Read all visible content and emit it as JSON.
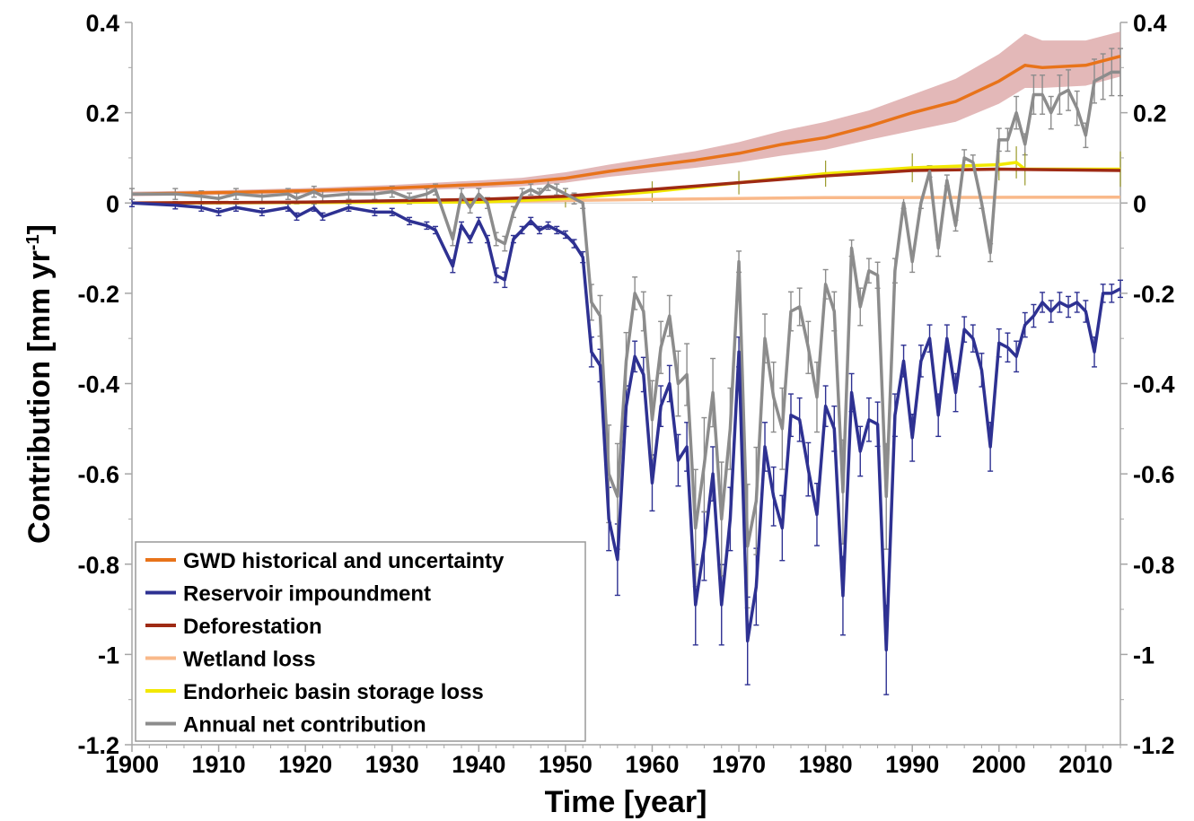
{
  "chart_data": {
    "type": "line",
    "xlabel": "Time [year]",
    "ylabel_main": "Contribution [mm yr",
    "ylabel_sup": "-1",
    "ylabel_end": "]",
    "xlim": [
      1900,
      2014
    ],
    "ylim": [
      -1.2,
      0.4
    ],
    "x_ticks": [
      1900,
      1910,
      1920,
      1930,
      1940,
      1950,
      1960,
      1970,
      1980,
      1990,
      2000,
      2010
    ],
    "y_ticks": [
      -1.2,
      -1,
      -0.8,
      -0.6,
      -0.4,
      -0.2,
      0,
      0.2,
      0.4
    ],
    "y_tick_labels": [
      "-1.2",
      "-1",
      "-0.8",
      "-0.6",
      "-0.4",
      "-0.2",
      "0",
      "0.2",
      "0.4"
    ],
    "right_axis": true,
    "legend_position": "bottom-left",
    "series": [
      {
        "name": "GWD historical and uncertainty",
        "color": "#e8731a",
        "band_color": "#d9a0a0",
        "x": [
          1900,
          1910,
          1920,
          1930,
          1940,
          1945,
          1950,
          1955,
          1960,
          1965,
          1970,
          1975,
          1980,
          1985,
          1990,
          1995,
          2000,
          2003,
          2005,
          2010,
          2014
        ],
        "values": [
          0.02,
          0.023,
          0.027,
          0.033,
          0.041,
          0.046,
          0.055,
          0.07,
          0.083,
          0.095,
          0.11,
          0.13,
          0.145,
          0.17,
          0.2,
          0.225,
          0.27,
          0.305,
          0.3,
          0.305,
          0.325
        ],
        "lower": [
          0.015,
          0.018,
          0.021,
          0.026,
          0.033,
          0.037,
          0.045,
          0.058,
          0.068,
          0.078,
          0.09,
          0.105,
          0.118,
          0.14,
          0.16,
          0.18,
          0.22,
          0.255,
          0.255,
          0.26,
          0.28
        ],
        "upper": [
          0.025,
          0.028,
          0.033,
          0.04,
          0.05,
          0.056,
          0.068,
          0.085,
          0.1,
          0.115,
          0.135,
          0.16,
          0.18,
          0.205,
          0.24,
          0.275,
          0.33,
          0.375,
          0.36,
          0.36,
          0.38
        ]
      },
      {
        "name": "Reservoir impoundment",
        "color": "#2e3192",
        "x": [
          1900,
          1905,
          1908,
          1910,
          1912,
          1915,
          1918,
          1919,
          1921,
          1922,
          1925,
          1928,
          1930,
          1932,
          1934,
          1935,
          1937,
          1938,
          1939,
          1940,
          1941,
          1942,
          1943,
          1944,
          1945,
          1946,
          1947,
          1948,
          1949,
          1950,
          1951,
          1952,
          1953,
          1954,
          1955,
          1956,
          1957,
          1958,
          1959,
          1960,
          1961,
          1962,
          1963,
          1964,
          1965,
          1966,
          1967,
          1968,
          1969,
          1970,
          1971,
          1972,
          1973,
          1974,
          1975,
          1976,
          1977,
          1978,
          1979,
          1980,
          1981,
          1982,
          1983,
          1984,
          1985,
          1986,
          1987,
          1988,
          1989,
          1990,
          1991,
          1992,
          1993,
          1994,
          1995,
          1996,
          1997,
          1998,
          1999,
          2000,
          2001,
          2002,
          2003,
          2004,
          2005,
          2006,
          2007,
          2008,
          2009,
          2010,
          2011,
          2012,
          2013,
          2014
        ],
        "values": [
          0,
          -0.005,
          -0.01,
          -0.02,
          -0.01,
          -0.02,
          -0.01,
          -0.03,
          -0.01,
          -0.03,
          -0.01,
          -0.02,
          -0.02,
          -0.04,
          -0.05,
          -0.06,
          -0.14,
          -0.05,
          -0.08,
          -0.04,
          -0.08,
          -0.16,
          -0.17,
          -0.08,
          -0.06,
          -0.04,
          -0.06,
          -0.05,
          -0.06,
          -0.07,
          -0.09,
          -0.12,
          -0.33,
          -0.36,
          -0.7,
          -0.79,
          -0.45,
          -0.34,
          -0.38,
          -0.62,
          -0.45,
          -0.4,
          -0.57,
          -0.54,
          -0.89,
          -0.76,
          -0.6,
          -0.89,
          -0.7,
          -0.33,
          -0.97,
          -0.85,
          -0.54,
          -0.65,
          -0.72,
          -0.47,
          -0.48,
          -0.59,
          -0.69,
          -0.45,
          -0.5,
          -0.87,
          -0.42,
          -0.55,
          -0.48,
          -0.49,
          -0.99,
          -0.47,
          -0.35,
          -0.52,
          -0.35,
          -0.3,
          -0.47,
          -0.3,
          -0.42,
          -0.28,
          -0.3,
          -0.37,
          -0.54,
          -0.31,
          -0.32,
          -0.34,
          -0.27,
          -0.25,
          -0.22,
          -0.24,
          -0.22,
          -0.23,
          -0.22,
          -0.24,
          -0.33,
          -0.2,
          -0.2,
          -0.19
        ]
      },
      {
        "name": "Deforestation",
        "color": "#9e2a14",
        "x": [
          1900,
          1920,
          1940,
          1950,
          1960,
          1970,
          1980,
          1990,
          2000,
          2014
        ],
        "values": [
          0,
          0.002,
          0.008,
          0.015,
          0.03,
          0.045,
          0.06,
          0.072,
          0.075,
          0.072
        ]
      },
      {
        "name": "Wetland loss",
        "color": "#f9b98a",
        "x": [
          1900,
          1940,
          1960,
          1980,
          2014
        ],
        "values": [
          0,
          0.003,
          0.008,
          0.012,
          0.013
        ]
      },
      {
        "name": "Endorheic basin storage loss",
        "color": "#f2e800",
        "x": [
          1900,
          1940,
          1950,
          1960,
          1970,
          1980,
          1990,
          2000,
          2002,
          2003,
          2014
        ],
        "values": [
          0,
          0.002,
          0.01,
          0.025,
          0.045,
          0.065,
          0.078,
          0.085,
          0.09,
          0.075,
          0.075
        ]
      },
      {
        "name": "Annual net contribution",
        "color": "#8c8c8c",
        "x": [
          1900,
          1905,
          1908,
          1910,
          1912,
          1915,
          1918,
          1919,
          1921,
          1922,
          1925,
          1928,
          1930,
          1932,
          1934,
          1935,
          1937,
          1938,
          1939,
          1940,
          1941,
          1942,
          1943,
          1944,
          1945,
          1946,
          1947,
          1948,
          1949,
          1950,
          1951,
          1952,
          1953,
          1954,
          1955,
          1956,
          1957,
          1958,
          1959,
          1960,
          1961,
          1962,
          1963,
          1964,
          1965,
          1966,
          1967,
          1968,
          1969,
          1970,
          1971,
          1972,
          1973,
          1974,
          1975,
          1976,
          1977,
          1978,
          1979,
          1980,
          1981,
          1982,
          1983,
          1984,
          1985,
          1986,
          1987,
          1988,
          1989,
          1990,
          1991,
          1992,
          1993,
          1994,
          1995,
          1996,
          1997,
          1998,
          1999,
          2000,
          2001,
          2002,
          2003,
          2004,
          2005,
          2006,
          2007,
          2008,
          2009,
          2010,
          2011,
          2012,
          2013,
          2014
        ],
        "values": [
          0.02,
          0.02,
          0.015,
          0.01,
          0.02,
          0.015,
          0.02,
          0.01,
          0.025,
          0.015,
          0.02,
          0.02,
          0.025,
          0.01,
          0.02,
          0.03,
          -0.08,
          0.02,
          -0.01,
          0.02,
          0.0,
          -0.08,
          -0.09,
          -0.02,
          0.02,
          0.03,
          0.02,
          0.04,
          0.03,
          0.02,
          0.01,
          0.0,
          -0.22,
          -0.25,
          -0.6,
          -0.65,
          -0.35,
          -0.2,
          -0.24,
          -0.48,
          -0.32,
          -0.25,
          -0.4,
          -0.38,
          -0.72,
          -0.58,
          -0.42,
          -0.7,
          -0.5,
          -0.13,
          -0.76,
          -0.66,
          -0.3,
          -0.43,
          -0.5,
          -0.24,
          -0.23,
          -0.32,
          -0.43,
          -0.18,
          -0.24,
          -0.64,
          -0.1,
          -0.23,
          -0.15,
          -0.16,
          -0.65,
          -0.15,
          0.0,
          -0.13,
          0.0,
          0.07,
          -0.1,
          0.05,
          -0.05,
          0.1,
          0.09,
          0.0,
          -0.11,
          0.14,
          0.14,
          0.2,
          0.13,
          0.24,
          0.24,
          0.2,
          0.24,
          0.25,
          0.21,
          0.15,
          0.27,
          0.28,
          0.29,
          0.29
        ]
      }
    ]
  }
}
